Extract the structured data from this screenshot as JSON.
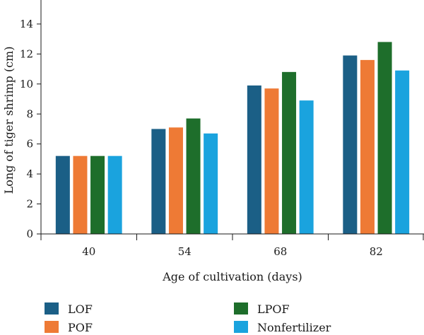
{
  "chart_data": {
    "type": "bar",
    "categories": [
      "40",
      "54",
      "68",
      "82"
    ],
    "series": [
      {
        "name": "LOF",
        "color": "#1b5f86",
        "values": [
          5.2,
          7.0,
          9.9,
          11.9
        ]
      },
      {
        "name": "POF",
        "color": "#ee7a35",
        "values": [
          5.2,
          7.1,
          9.7,
          11.6
        ]
      },
      {
        "name": "LPOF",
        "color": "#1e6e2b",
        "values": [
          5.2,
          7.7,
          10.8,
          12.8
        ]
      },
      {
        "name": "Nonfertilizer",
        "color": "#1aa3de",
        "values": [
          5.2,
          6.7,
          8.9,
          10.9
        ]
      }
    ],
    "xlabel": "Age of cultivation (days)",
    "ylabel": "Long of tiger shrimp (cm)",
    "ylim": [
      0,
      15.6
    ],
    "yticks": [
      0,
      2,
      4,
      6,
      8,
      10,
      12,
      14
    ],
    "grid": false,
    "legend_position": "bottom"
  }
}
